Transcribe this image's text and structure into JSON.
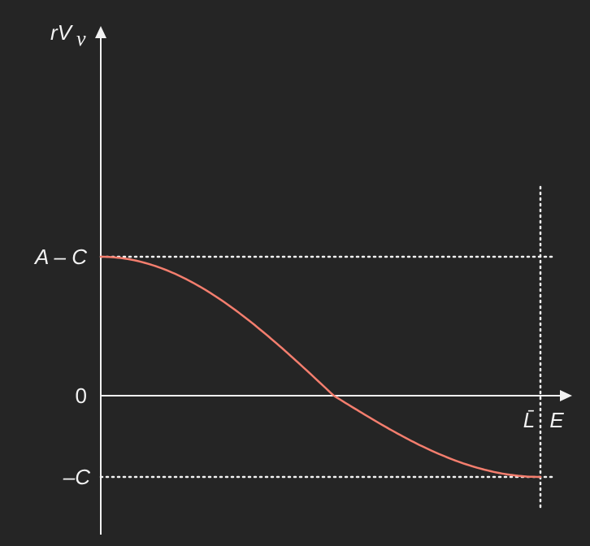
{
  "colors": {
    "background": "#252525",
    "axis": "#f2f2f2",
    "guide": "#f2f2f2",
    "curve": "#f47e6e"
  },
  "y_axis": {
    "label_main": "rV",
    "label_sub": "v",
    "ticks": {
      "upper": "A – C",
      "zero": "0",
      "lower": "–C"
    }
  },
  "x_axis": {
    "label": "E",
    "marker": "L̄"
  },
  "curve": {
    "shape": "decreasing-cosine",
    "from": "A – C",
    "to": "–C",
    "zero_crossing_fraction_of_Lbar": 0.53
  }
}
